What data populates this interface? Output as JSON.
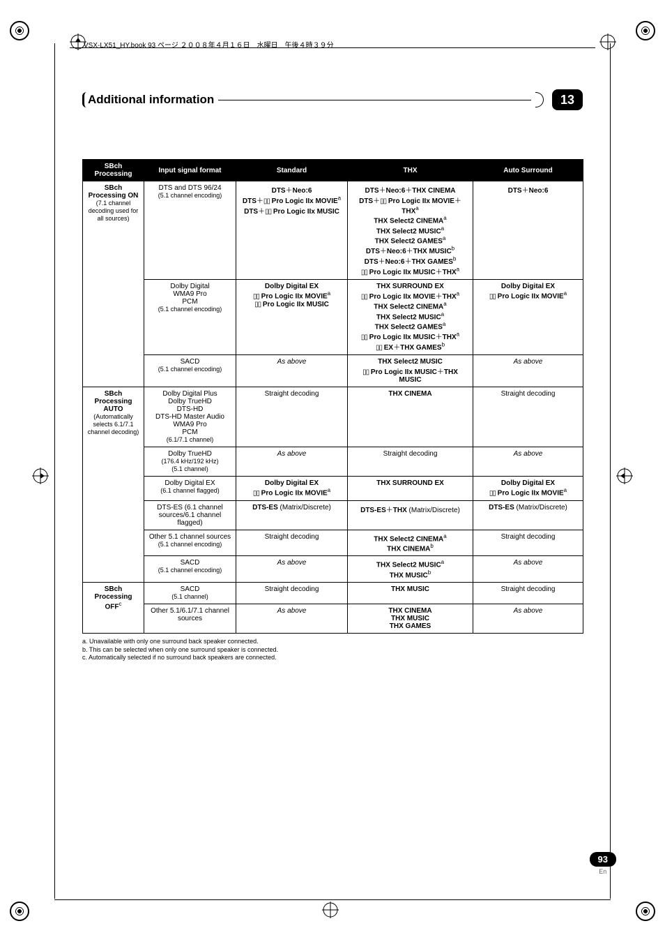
{
  "jp_header": "VSX-LX51_HY.book  93 ページ  ２００８年４月１６日　水曜日　午後４時３９分",
  "chapter": {
    "title": "Additional information",
    "number": "13"
  },
  "headers": [
    "SBch Processing",
    "Input signal format",
    "Standard",
    "THX",
    "Auto Surround"
  ],
  "groups": [
    {
      "label_html": "<b>SBch Processing ON</b><br><span class=\"sub\">(7.1 channel decoding used for all sources)</span>",
      "rows": [
        {
          "input": "DTS and DTS 96/24<br><span class=\"sub\">(5.1 channel encoding)</span>",
          "standard": "<b>DTS</b>＋<b>Neo:6</b><br><b>DTS</b>＋<span class=\"dd\">▯▯</span> <b>Pro Logic IIx MOVIE</b><span class=\"sup\">a</span><br><b>DTS</b>＋<span class=\"dd\">▯▯</span> <b>Pro Logic IIx MUSIC</b>",
          "thx": "<b>DTS</b>＋<b>Neo:6</b>＋<b>THX CINEMA</b><br><b>DTS</b>＋<span class=\"dd\">▯▯</span> <b>Pro Logic IIx MOVIE</b>＋<b>THX</b><span class=\"sup\">a</span><br><b>THX Select2 CINEMA</b><span class=\"sup\">a</span><br><b>THX Select2 MUSIC</b><span class=\"sup\">a</span><br><b>THX Select2 GAMES</b><span class=\"sup\">a</span><br><b>DTS</b>＋<b>Neo:6</b>＋<b>THX MUSIC</b><span class=\"sup\">b</span><br><b>DTS</b>＋<b>Neo:6</b>＋<b>THX GAMES</b><span class=\"sup\">b</span><br><span class=\"dd\">▯▯</span> <b>Pro Logic IIx MUSIC</b>＋<b>THX</b><span class=\"sup\">a</span>",
          "auto": "<b>DTS</b>＋<b>Neo:6</b>"
        },
        {
          "input": "Dolby Digital<br>WMA9 Pro<br>PCM<br><span class=\"sub\">(5.1 channel encoding)</span>",
          "standard": "<b>Dolby Digital EX</b><br><span class=\"dd\">▯▯</span> <b>Pro Logic IIx MOVIE</b><span class=\"sup\">a</span><br><span class=\"dd\">▯▯</span> <b>Pro Logic IIx MUSIC</b>",
          "thx": "<b>THX SURROUND EX</b><br><span class=\"dd\">▯▯</span> <b>Pro Logic IIx MOVIE</b>＋<b>THX</b><span class=\"sup\">a</span><br><b>THX Select2 CINEMA</b><span class=\"sup\">a</span><br><b>THX Select2 MUSIC</b><span class=\"sup\">a</span><br><b>THX Select2 GAMES</b><span class=\"sup\">a</span><br><span class=\"dd\">▯▯</span> <b>Pro Logic IIx MUSIC</b>＋<b>THX</b><span class=\"sup\">a</span><br><span class=\"dd\">▯▯</span> <b>EX</b>＋<b>THX GAMES</b><span class=\"sup\">b</span>",
          "auto": "<b>Dolby Digital EX</b><br><span class=\"dd\">▯▯</span> <b>Pro Logic IIx MOVIE</b><span class=\"sup\">a</span>"
        },
        {
          "input": "SACD<br><span class=\"sub\">(5.1 channel encoding)</span>",
          "standard": "<span class=\"it\">As above</span>",
          "thx": "<b>THX Select2 MUSIC</b><br><span class=\"dd\">▯▯</span> <b>Pro Logic IIx MUSIC</b>＋<b>THX MUSIC</b>",
          "auto": "<span class=\"it\">As above</span>"
        }
      ]
    },
    {
      "label_html": "<b>SBch Processing AUTO</b><br><span class=\"sub\">(Automatically selects 6.1/7.1 channel decoding)</span>",
      "rows": [
        {
          "input": "Dolby Digital Plus<br>Dolby TrueHD<br>DTS-HD<br>DTS-HD Master Audio<br>WMA9 Pro<br>PCM<br><span class=\"sub\">(6.1/7.1 channel)</span>",
          "standard": "Straight decoding",
          "thx": "<b>THX CINEMA</b>",
          "auto": "Straight decoding"
        },
        {
          "input": "Dolby TrueHD<br><span class=\"sub\">(176.4 kHz/192 kHz)</span><br><span class=\"sub\">(5.1 channel)</span>",
          "standard": "<span class=\"it\">As above</span>",
          "thx": "Straight decoding",
          "auto": "<span class=\"it\">As above</span>"
        },
        {
          "input": "Dolby Digital EX<br><span class=\"sub\">(6.1 channel flagged)</span>",
          "standard": "<b>Dolby Digital EX</b><br><span class=\"dd\">▯▯</span> <b>Pro Logic IIx MOVIE</b><span class=\"sup\">a</span>",
          "thx": "<b>THX SURROUND EX</b>",
          "auto": "<b>Dolby Digital EX</b><br><span class=\"dd\">▯▯</span> <b>Pro Logic IIx MOVIE</b><span class=\"sup\">a</span>"
        },
        {
          "input": "DTS-ES (6.1 channel sources/6.1 channel flagged)",
          "standard": "<b>DTS-ES</b> (Matrix/Discrete)",
          "thx": "<b>DTS-ES</b>＋<b>THX</b> (Matrix/Discrete)",
          "auto": "<b>DTS-ES</b> (Matrix/Discrete)"
        },
        {
          "input": "Other 5.1 channel sources<br><span class=\"sub\">(5.1 channel encoding)</span>",
          "standard": "Straight decoding",
          "thx": "<b>THX Select2 CINEMA</b><span class=\"sup\">a</span><br><b>THX CINEMA</b><span class=\"sup\">b</span>",
          "auto": "Straight decoding"
        },
        {
          "input": "SACD<br><span class=\"sub\">(5.1 channel encoding)</span>",
          "standard": "<span class=\"it\">As above</span>",
          "thx": "<b>THX Select2 MUSIC</b><span class=\"sup\">a</span><br><b>THX MUSIC</b><span class=\"sup\">b</span>",
          "auto": "<span class=\"it\">As above</span>"
        }
      ]
    },
    {
      "label_html": "<b>SBch Processing OFF</b><span class=\"sup\">c</span>",
      "rows": [
        {
          "input": "SACD<br><span class=\"sub\">(5.1 channel)</span>",
          "standard": "Straight decoding",
          "thx": "<b>THX MUSIC</b>",
          "auto": "Straight decoding"
        },
        {
          "input": "Other 5.1/6.1/7.1 channel sources",
          "standard": "<span class=\"it\">As above</span>",
          "thx": "<b>THX CINEMA</b><br><b>THX MUSIC</b><br><b>THX GAMES</b>",
          "auto": "<span class=\"it\">As above</span>"
        }
      ]
    }
  ],
  "footnotes": [
    "a. Unavailable with only one surround back speaker connected.",
    "b. This can be selected when only one surround speaker is connected.",
    "c. Automatically selected if no surround back speakers are connected."
  ],
  "page": {
    "num": "93",
    "lang": "En"
  }
}
